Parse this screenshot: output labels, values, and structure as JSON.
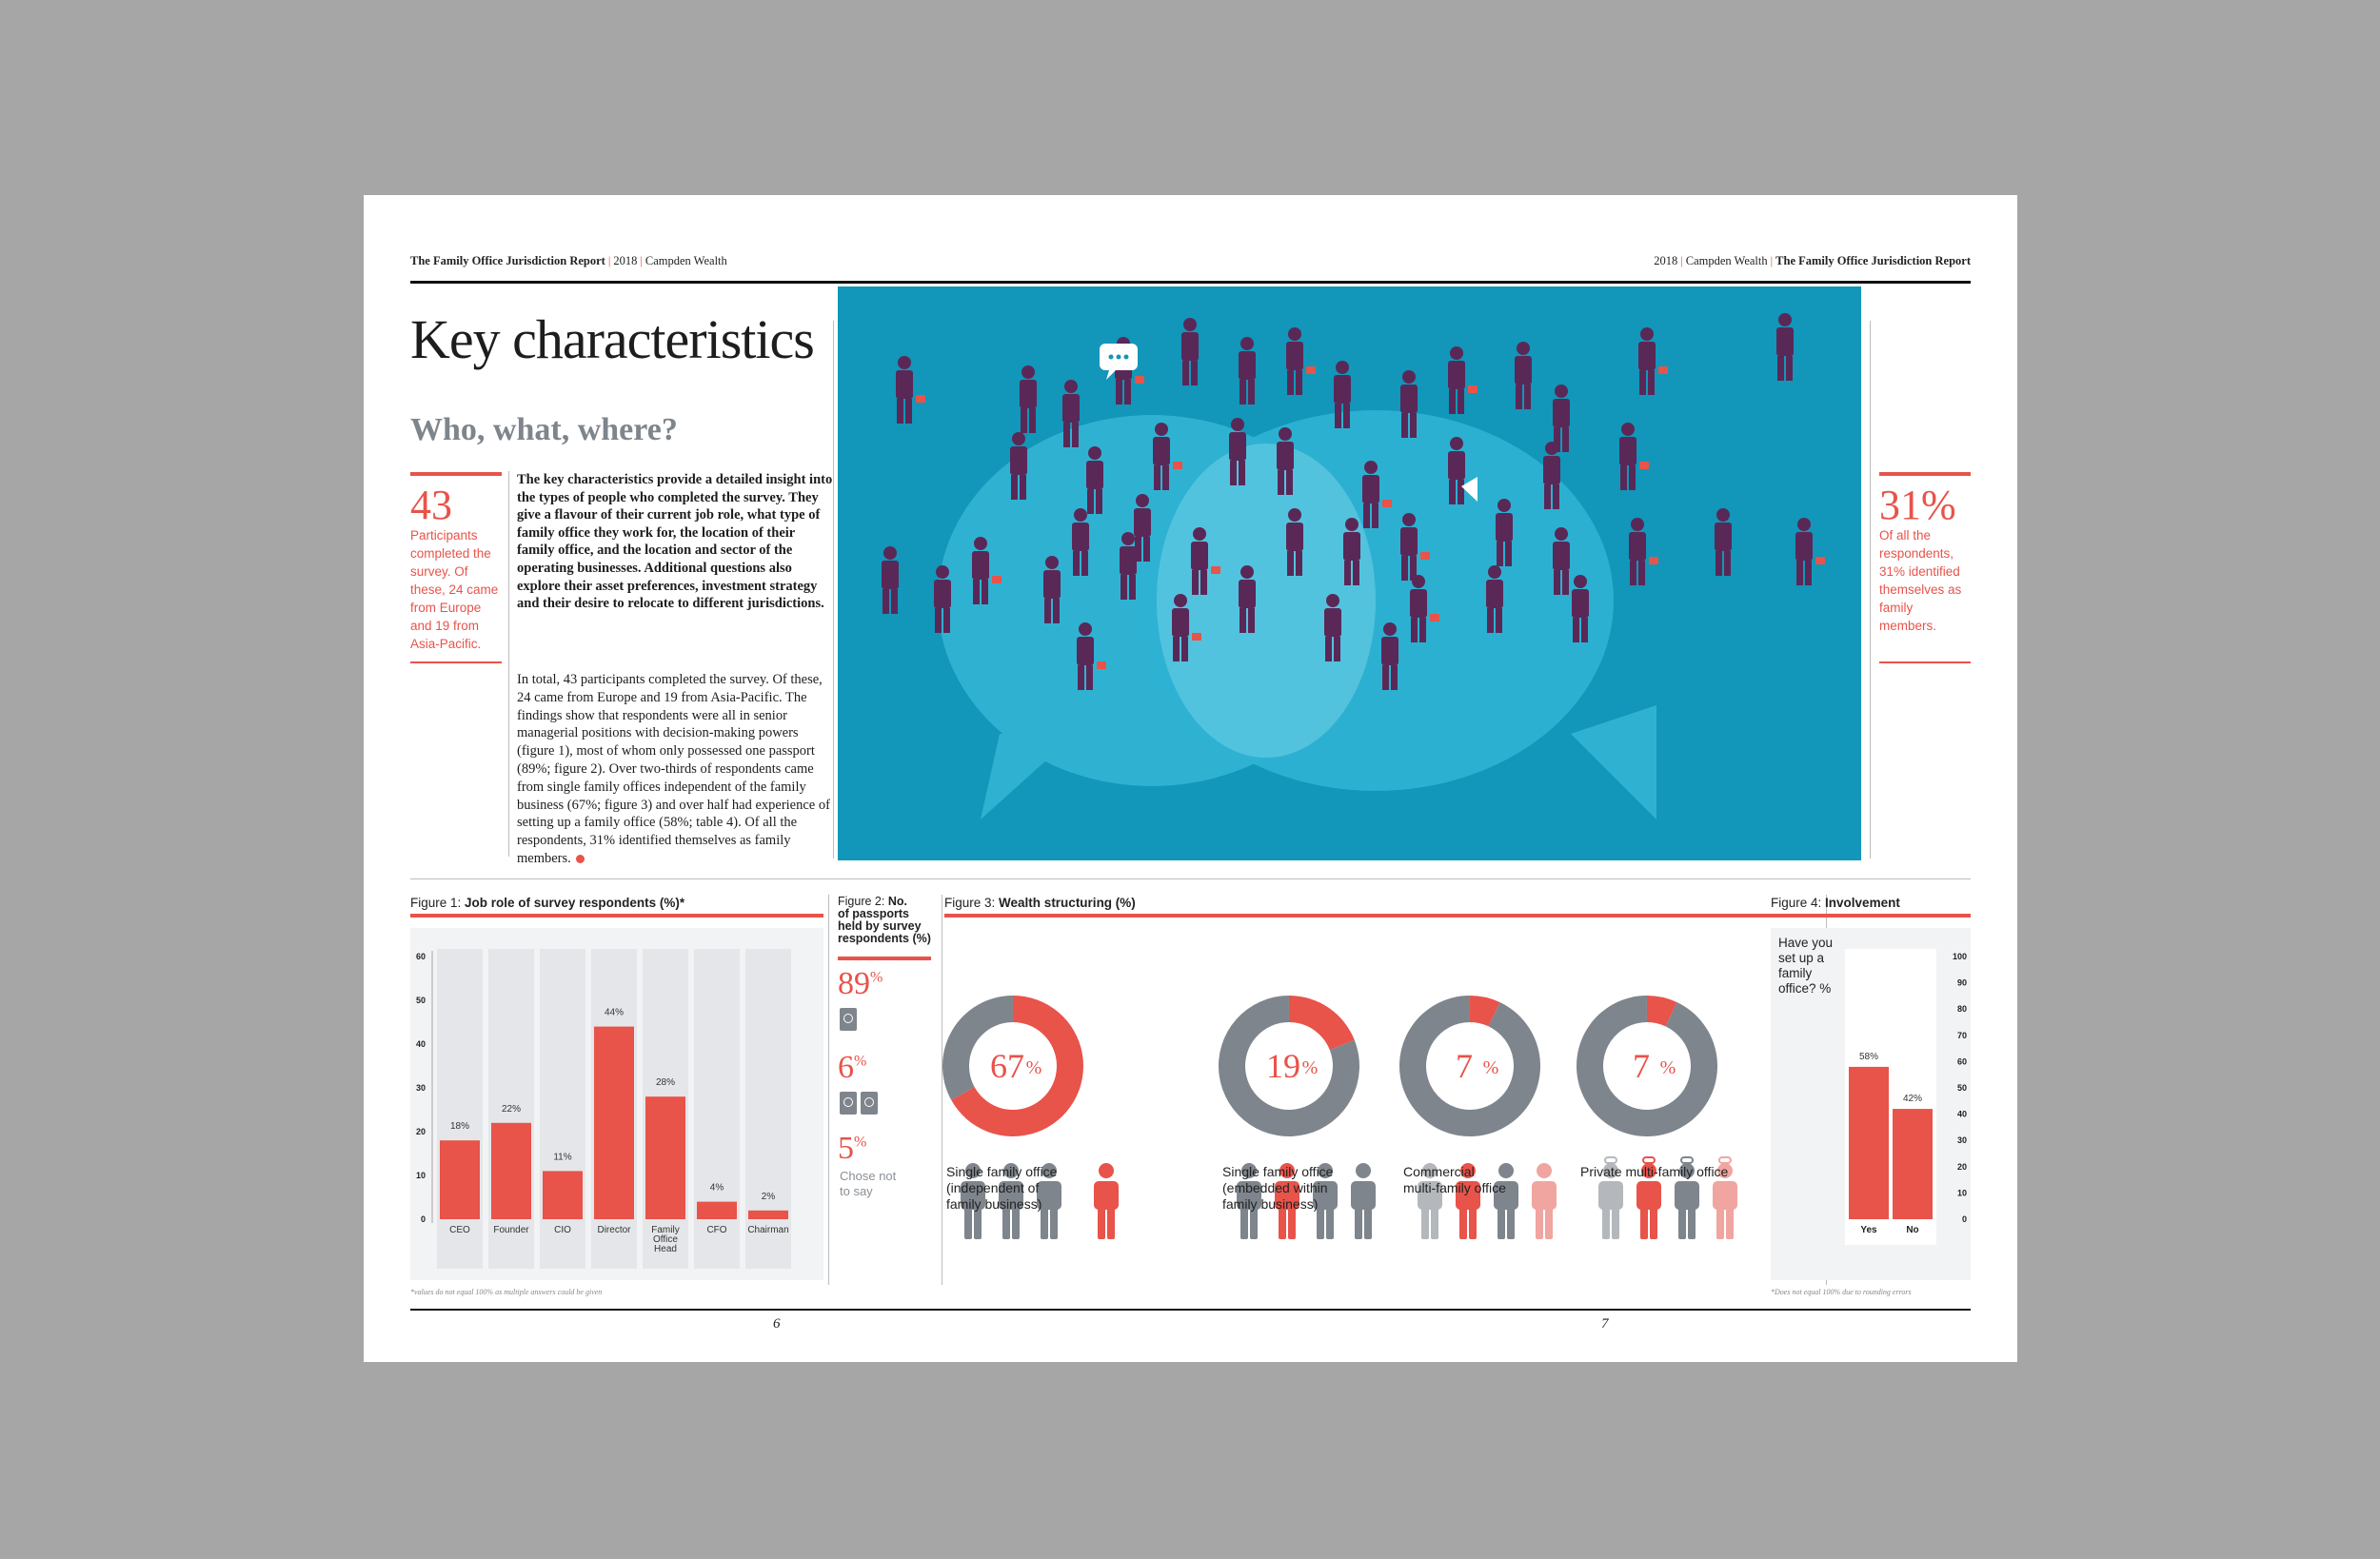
{
  "header": {
    "left": {
      "report": "The Family Office Jurisdiction Report",
      "year": "2018",
      "publisher": "Campden Wealth"
    },
    "right": {
      "year": "2018",
      "publisher": "Campden Wealth",
      "report": "The Family Office Jurisdiction Report"
    },
    "separator": "|"
  },
  "title": "Key characteristics",
  "subtitle": "Who, what, where?",
  "stat_left": {
    "number": "43",
    "text": "Participants completed the survey. Of these, 24 came from Europe and 19 from Asia-Pacific."
  },
  "stat_right": {
    "number": "31%",
    "text": "Of all the respondents, 31% identified themselves as family members."
  },
  "lead": "The key characteristics provide a detailed insight into the types of people who completed the survey. They give a flavour of their current job role, what type of family office they work for, the location of their family office, and the location and sector of the operating businesses. Additional questions also explore their asset preferences, investment strategy and their desire to relocate to different jurisdictions.",
  "body": "In total, 43 participants completed the survey. Of these, 24 came from Europe and 19 from Asia-Pacific. The findings show that respondents were all in senior managerial positions with decision-making powers (figure 1), most of whom only possessed one passport (89%; figure 2). Over two-thirds of respondents came from single family offices independent of the family business (67%; figure 3) and over half had experience of setting up a family office (58%; table 4). Of all the respondents, 31% identified themselves as family members.",
  "colors": {
    "accent": "#e8534a",
    "grey": "#7e858c",
    "illustration_bg": "#1296b9",
    "bubble": "#3cbad6",
    "figures": "#5a2857"
  },
  "figure1": {
    "label": "Figure 1:",
    "title": "Job role of survey respondents (%)*",
    "footnote": "*values do not equal 100% as multiple answers could be given",
    "chart_data": {
      "type": "bar",
      "categories": [
        "CEO",
        "Founder",
        "CIO",
        "Director",
        "Family Office Head",
        "CFO",
        "Chairman"
      ],
      "category_lines": [
        [
          "CEO"
        ],
        [
          "Founder"
        ],
        [
          "CIO"
        ],
        [
          "Director"
        ],
        [
          "Family",
          "Office",
          "Head"
        ],
        [
          "CFO"
        ],
        [
          "Chairman"
        ]
      ],
      "values": [
        18,
        22,
        11,
        44,
        28,
        4,
        2
      ],
      "value_labels": [
        "18%",
        "22%",
        "11%",
        "44%",
        "28%",
        "4%",
        "2%"
      ],
      "yticks": [
        0,
        10,
        20,
        30,
        40,
        50,
        60
      ],
      "ylim": [
        0,
        60
      ]
    }
  },
  "figure2": {
    "label": "Figure 2:",
    "title_lines": [
      "No.",
      "of passports",
      "held by survey",
      "respondents (%)"
    ],
    "items": [
      {
        "value": "89",
        "unit": "%",
        "icon": "passport-icon",
        "count": 1
      },
      {
        "value": "6",
        "unit": "%",
        "icon": "passport-icon",
        "count": 2
      },
      {
        "value": "5",
        "unit": "%",
        "text_lines": [
          "Chose not",
          "to say"
        ]
      }
    ]
  },
  "figure3": {
    "label": "Figure 3:",
    "title": "Wealth structuring (%)",
    "chart_data": {
      "type": "pie",
      "slices": [
        {
          "value": 67,
          "label": "67",
          "name_lines": [
            "Single family office",
            "(independent of",
            "family business)"
          ]
        },
        {
          "value": 19,
          "label": "19",
          "name_lines": [
            "Single family office",
            "(embedded within",
            "family business)"
          ]
        },
        {
          "value": 7,
          "label": "7",
          "name_lines": [
            "Commercial",
            "multi-family office"
          ]
        },
        {
          "value": 7,
          "label": "7",
          "name_lines": [
            "Private multi-family office"
          ]
        }
      ],
      "unit": "%"
    }
  },
  "figure4": {
    "label": "Figure 4:",
    "title": "Involvement",
    "question_lines": [
      "Have you",
      "set up a",
      "family",
      "office? %"
    ],
    "footnote": "*Does not equal 100% due to rounding errors",
    "chart_data": {
      "type": "bar",
      "categories": [
        "Yes",
        "No"
      ],
      "values": [
        58,
        42
      ],
      "value_labels": [
        "58%",
        "42%"
      ],
      "yticks": [
        0,
        10,
        20,
        30,
        40,
        50,
        60,
        70,
        80,
        90,
        100
      ],
      "ylim": [
        0,
        100
      ]
    }
  },
  "pages": {
    "left": "6",
    "right": "7"
  }
}
